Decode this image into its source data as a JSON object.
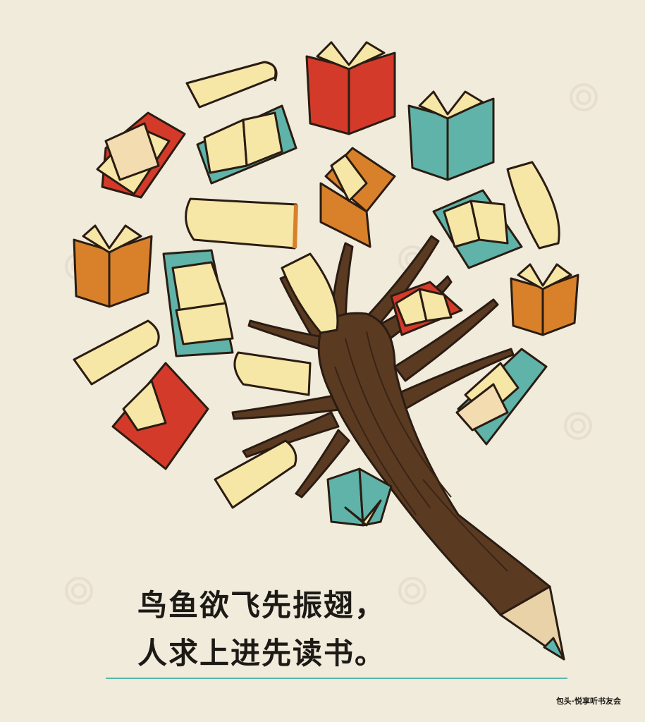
{
  "poem": {
    "line1": "鸟鱼欲飞先振翅，",
    "line2": "人求上进先读书。"
  },
  "credit": "包头·悦享听书友会",
  "illustration": {
    "subject": "pencil-tree-with-books",
    "colors": {
      "background": "#f1ebdc",
      "trunk": "#5b3a22",
      "trunk_dark": "#3b2414",
      "red": "#d43a2a",
      "orange": "#d9812a",
      "teal": "#5fb3a8",
      "pages": "#f7e7a6",
      "pencil_wood": "#e9d2a8",
      "pencil_tip": "#5bb6ad",
      "outline": "#2a1c12"
    }
  }
}
